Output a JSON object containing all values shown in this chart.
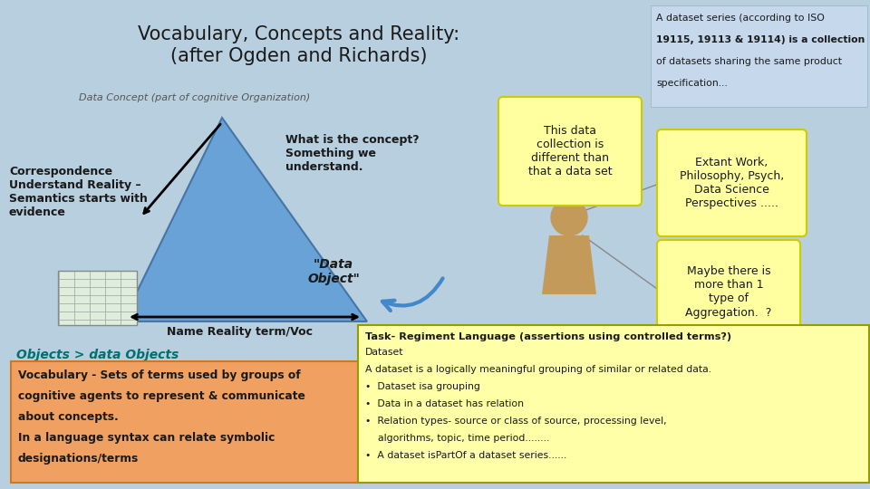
{
  "title_line1": "Vocabulary, Concepts and Reality:",
  "title_line2": "(after Ogden and Richards)",
  "bg_color": "#b8cfe0",
  "title_color": "#1a1a1a",
  "title_fontsize": 15,
  "data_concept_label": "Data Concept (part of cognitive Organization)",
  "triangle_color": "#5b9bd5",
  "triangle_alpha": 0.85,
  "left_text": "Correspondence\nUnderstand Reality –\nSemantics starts with\nevidence",
  "right_text": "What is the concept?\nSomething we\nunderstand.",
  "bottom_text": "\"Data\nObject\"",
  "name_reality_text": "Name Reality term/Voc",
  "speech_bubble1_text": "This data\ncollection is\ndifferent than\nthat a data set",
  "speech_bubble1_bg": "#ffffa0",
  "speech_bubble2_text": "Extant Work,\nPhilosophy, Psych,\nData Science\nPerspectives .....",
  "speech_bubble2_bg": "#ffffa0",
  "speech_bubble3_text": "Maybe there is\nmore than 1\ntype of\nAggregation.  ?",
  "speech_bubble3_bg": "#ffffa0",
  "top_right_box_text_line1": "A dataset series (according to ISO",
  "top_right_box_text_line2": "19115, 19113 & 19114) is a collection",
  "top_right_box_text_line3": "of datasets sharing the same product",
  "top_right_box_text_line4": "specification...",
  "top_right_box_bg": "#c5d8ec",
  "objects_label": "Objects > data Objects",
  "objects_label_color": "#007070",
  "vocab_box_line1": "Vocabulary - Sets of terms used by groups of",
  "vocab_box_line2": "cognitive agents to represent & communicate",
  "vocab_box_line3": "about concepts.",
  "vocab_box_line4": "In a language syntax can relate symbolic",
  "vocab_box_line5": "designations/terms",
  "vocab_box_bg": "#f0a060",
  "task_box_title": "Task- Regiment Language (assertions using controlled terms?)",
  "task_line1": "Dataset",
  "task_line2": "A dataset is a logically meaningful grouping of similar or related data.",
  "task_line3": "•  Dataset isa grouping",
  "task_line4": "•  Data in a dataset has relation",
  "task_line5": "•  Relation types- source or class of source, processing level,",
  "task_line6": "    algorithms, topic, time period........",
  "task_line7": "•  A dataset isPartOf a dataset series......",
  "task_box_bg": "#ffffa8",
  "task_box_border": "#999900"
}
